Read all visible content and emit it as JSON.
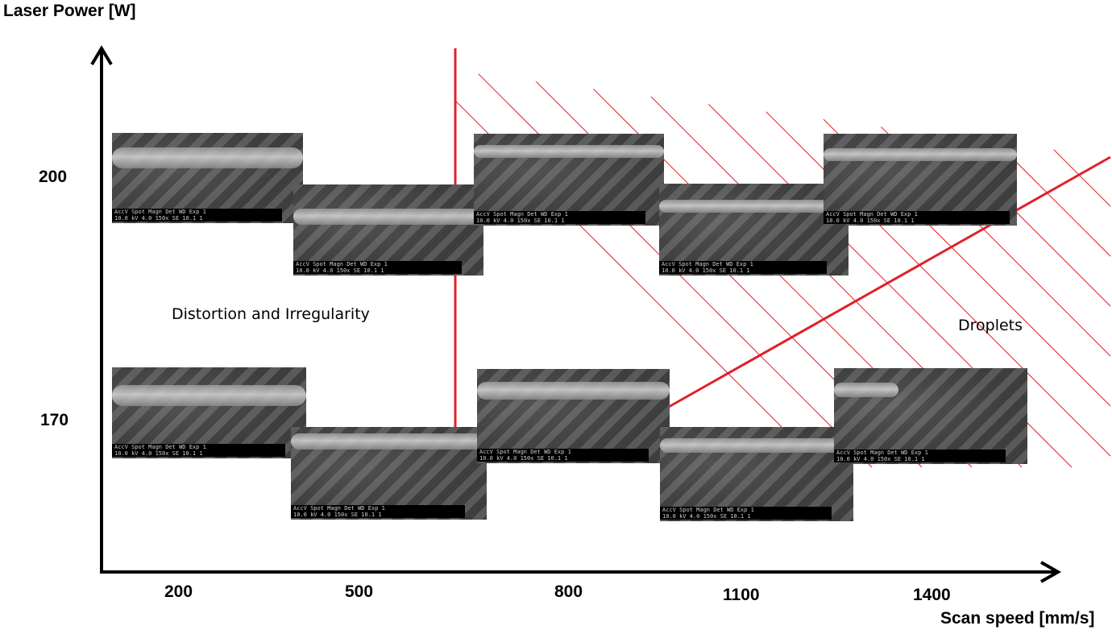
{
  "axes": {
    "y_title": "Laser Power [W]",
    "x_title": "Scan speed [mm/s]",
    "y_ticks": [
      "200",
      "170"
    ],
    "x_ticks": [
      "200",
      "500",
      "800",
      "1100",
      "1400"
    ]
  },
  "regions": {
    "left": "Distortion and Irregularity",
    "right": "Droplets"
  },
  "colors": {
    "axis": "#000000",
    "boundary": "#e0202a",
    "hatch": "#e0202a"
  },
  "micrographs": [
    {
      "power": "200",
      "speed": "200"
    },
    {
      "power": "200",
      "speed": "500"
    },
    {
      "power": "200",
      "speed": "800"
    },
    {
      "power": "200",
      "speed": "1100"
    },
    {
      "power": "200",
      "speed": "1400"
    },
    {
      "power": "170",
      "speed": "200"
    },
    {
      "power": "170",
      "speed": "500"
    },
    {
      "power": "170",
      "speed": "800"
    },
    {
      "power": "170",
      "speed": "1100"
    },
    {
      "power": "170",
      "speed": "1400"
    }
  ]
}
